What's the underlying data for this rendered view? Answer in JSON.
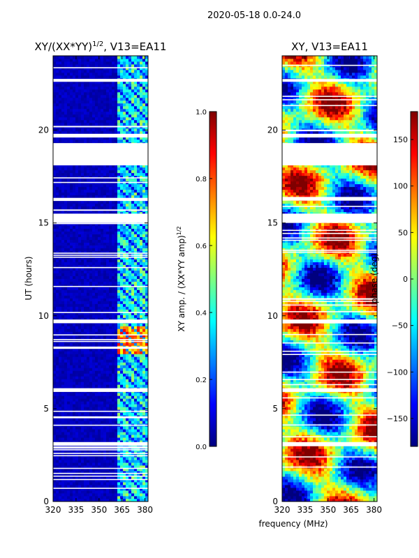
{
  "suptitle": "2020-05-18 0.0-24.0",
  "colormap": [
    "#00007f",
    "#0000ff",
    "#007fff",
    "#00ffff",
    "#7fff7f",
    "#ffff00",
    "#ff7f00",
    "#ff0000",
    "#7f0000"
  ],
  "chart_data": [
    {
      "type": "heatmap",
      "title": "XY/(XX*YY)^1/2, V13=EA11",
      "title_base": "XY/(XX*YY)",
      "title_exp": "1/2",
      "title_tail": ", V13=EA11",
      "xlabel": "",
      "ylabel": "UT (hours)",
      "xlim": [
        320,
        382
      ],
      "ylim": [
        0,
        24
      ],
      "xticks": [
        320,
        335,
        350,
        365,
        380
      ],
      "yticks": [
        0,
        5,
        10,
        15,
        20
      ],
      "colorbar": {
        "label": "XY amp. / (XX*YY amp)^1/2",
        "label_base": "XY amp. / (XX*YY amp)",
        "label_exp": "1/2",
        "range": [
          0.0,
          1.0
        ],
        "ticks": [
          0.0,
          0.2,
          0.4,
          0.6,
          0.8,
          1.0
        ],
        "tick_labels": [
          "0.0",
          "0.2",
          "0.4",
          "0.6",
          "0.8",
          "1.0"
        ]
      },
      "flagged_hours": [
        [
          18.1,
          19.3
        ],
        [
          15.0,
          15.5
        ],
        [
          19.6,
          19.8
        ],
        [
          3.0,
          3.2
        ],
        [
          9.6,
          9.8
        ],
        [
          5.9,
          6.1
        ],
        [
          16.2,
          16.35
        ],
        [
          22.6,
          22.75
        ]
      ],
      "bright_band_MHz": [
        362,
        382
      ],
      "peak_region": {
        "freq": [
          362,
          382
        ],
        "hours": [
          8.0,
          9.5
        ],
        "value": 0.85
      }
    },
    {
      "type": "heatmap",
      "title": "XY, V13=EA11",
      "xlabel": "frequency (MHz)",
      "ylabel": "",
      "xlim": [
        320,
        382
      ],
      "ylim": [
        0,
        24
      ],
      "xticks": [
        320,
        335,
        350,
        365,
        380
      ],
      "yticks": [
        0,
        5,
        10,
        15,
        20
      ],
      "colorbar": {
        "label": "phase (deg)",
        "range": [
          -180,
          180
        ],
        "ticks": [
          -150,
          -100,
          -50,
          0,
          50,
          100,
          150
        ],
        "tick_labels": [
          "−150",
          "−100",
          "−50",
          "0",
          "50",
          "100",
          "150"
        ]
      },
      "flagged_hours": [
        [
          18.1,
          19.3
        ],
        [
          15.0,
          15.5
        ],
        [
          19.6,
          19.8
        ],
        [
          3.0,
          3.2
        ],
        [
          9.6,
          9.8
        ],
        [
          5.9,
          6.1
        ],
        [
          16.2,
          16.35
        ],
        [
          22.6,
          22.75
        ]
      ]
    }
  ]
}
